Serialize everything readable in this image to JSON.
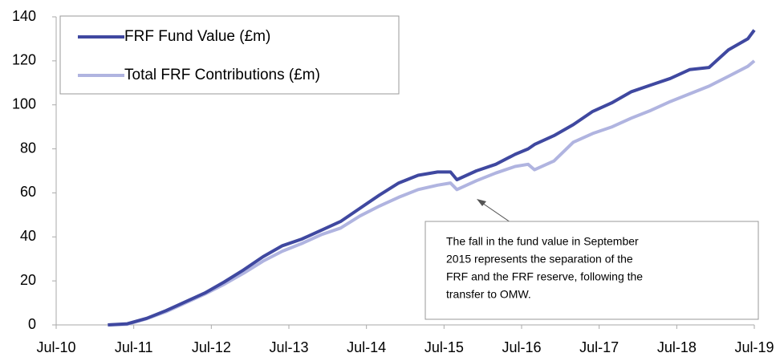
{
  "chart_data": {
    "type": "line",
    "x": [
      "2011-03",
      "2011-06",
      "2011-09",
      "2011-12",
      "2012-03",
      "2012-06",
      "2012-09",
      "2012-12",
      "2013-03",
      "2013-06",
      "2013-09",
      "2013-12",
      "2014-03",
      "2014-06",
      "2014-09",
      "2014-12",
      "2015-03",
      "2015-06",
      "2015-08",
      "2015-09",
      "2015-12",
      "2016-03",
      "2016-06",
      "2016-08",
      "2016-09",
      "2016-12",
      "2017-03",
      "2017-06",
      "2017-09",
      "2017-12",
      "2018-03",
      "2018-06",
      "2018-09",
      "2018-12",
      "2019-03",
      "2019-06",
      "2019-07"
    ],
    "series": [
      {
        "name": "FRF Fund Value (£m)",
        "color": "#3f48a0",
        "values": [
          0,
          0.5,
          3,
          6.5,
          10.5,
          14.5,
          19.5,
          25,
          31,
          36,
          39,
          43,
          47,
          53,
          59,
          64.5,
          68,
          69.5,
          69.5,
          66,
          70,
          73,
          77.5,
          80,
          82,
          86,
          91,
          97,
          101,
          106,
          109,
          112,
          116,
          117,
          125,
          130,
          134
        ]
      },
      {
        "name": "Total FRF Contributions (£m)",
        "color": "#b0b4e0",
        "values": [
          0,
          0.3,
          2.8,
          6,
          10,
          14,
          18.5,
          23.5,
          29,
          33.5,
          37,
          41,
          44,
          49.5,
          54,
          58,
          61.5,
          63.5,
          64.5,
          61.5,
          65.5,
          69,
          72,
          73,
          70.5,
          74.5,
          83,
          87,
          90,
          94,
          97.5,
          101.5,
          105,
          108.5,
          113,
          117.5,
          120
        ]
      }
    ],
    "xlim": [
      "2010-07",
      "2019-07"
    ],
    "xticks": [
      {
        "value": "2010-07",
        "label": "Jul-10"
      },
      {
        "value": "2011-07",
        "label": "Jul-11"
      },
      {
        "value": "2012-07",
        "label": "Jul-12"
      },
      {
        "value": "2013-07",
        "label": "Jul-13"
      },
      {
        "value": "2014-07",
        "label": "Jul-14"
      },
      {
        "value": "2015-07",
        "label": "Jul-15"
      },
      {
        "value": "2016-07",
        "label": "Jul-16"
      },
      {
        "value": "2017-07",
        "label": "Jul-17"
      },
      {
        "value": "2018-07",
        "label": "Jul-18"
      },
      {
        "value": "2019-07",
        "label": "Jul-19"
      }
    ],
    "ylim": [
      0,
      140
    ],
    "yticks": [
      0,
      20,
      40,
      60,
      80,
      100,
      120,
      140
    ],
    "grid": false,
    "legend": "top-left",
    "annotation": [
      "The fall in the fund value in September",
      "2015 represents the separation of the",
      "FRF and the FRF reserve, following the",
      "transfer to OMW."
    ]
  }
}
